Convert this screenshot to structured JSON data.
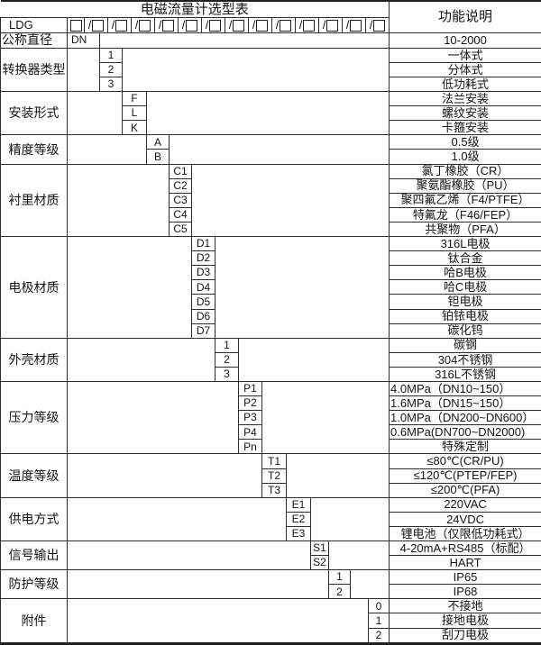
{
  "title": "电磁流量计选型表",
  "right_header": "功能说明",
  "model": {
    "prefix": "LDG",
    "first_box": "□",
    "slash_box_count": 13
  },
  "groups": [
    {
      "label": "公称直径",
      "label_align": "left",
      "code_col": 1,
      "code_align": "left",
      "codes": [
        "DN"
      ],
      "values": [
        "10-2000"
      ]
    },
    {
      "label": "转换器类型",
      "code_col": 2,
      "codes": [
        "1",
        "2",
        "3"
      ],
      "values": [
        "一体式",
        "分体式",
        "低功耗式"
      ]
    },
    {
      "label": "安装形式",
      "code_col": 3,
      "codes": [
        "F",
        "L",
        "K"
      ],
      "values": [
        "法兰安装",
        "螺纹安装",
        "卡箍安装"
      ]
    },
    {
      "label": "精度等级",
      "code_col": 4,
      "codes": [
        "A",
        "B"
      ],
      "values": [
        "0.5级",
        "1.0级"
      ]
    },
    {
      "label": "衬里材质",
      "code_col": 5,
      "codes": [
        "C1",
        "C2",
        "C3",
        "C4",
        "C5"
      ],
      "values": [
        "氯丁橡胶（CR）",
        "聚氨酯橡胶（PU）",
        "聚四氟乙烯（F4/PTFE）",
        "特氟龙（F46/FEP）",
        "共聚物（PFA）"
      ]
    },
    {
      "label": "电极材质",
      "code_col": 6,
      "codes": [
        "D1",
        "D2",
        "D3",
        "D4",
        "D5",
        "D6",
        "D7"
      ],
      "values": [
        "316L电极",
        "钛合金",
        "哈B电极",
        "哈C电极",
        "钽电极",
        "铂铱电极",
        "碳化钨"
      ]
    },
    {
      "label": "外壳材质",
      "code_col": 7,
      "codes": [
        "1",
        "2",
        "3"
      ],
      "values": [
        "碳钢",
        "304不锈钢",
        "316L不锈钢"
      ]
    },
    {
      "label": "压力等级",
      "code_col": 8,
      "codes": [
        "P1",
        "P2",
        "P3",
        "P4",
        "Pn"
      ],
      "values": [
        "4.0MPa（DN10~150）",
        "1.6MPa（DN15~150）",
        "1.0MPa（DN200~DN600）",
        "0.6MPa(DN700~DN2000)",
        "特殊定制"
      ],
      "value_align": [
        "left",
        "left",
        "left",
        "left",
        "center"
      ]
    },
    {
      "label": "温度等级",
      "code_col": 9,
      "codes": [
        "T1",
        "T2",
        "T3"
      ],
      "values": [
        "≤80℃(CR/PU)",
        "≤120℃(PTEP/FEP)",
        "≤200℃(PFA)"
      ]
    },
    {
      "label": "供电方式",
      "code_col": 10,
      "codes": [
        "E1",
        "E2",
        "E3"
      ],
      "values": [
        "220VAC",
        "24VDC",
        "锂电池（仅限低功耗式）"
      ]
    },
    {
      "label": "信号输出",
      "code_col": 11,
      "codes": [
        "S1",
        "S2"
      ],
      "values": [
        "4-20mA+RS485（标配）",
        "HART"
      ]
    },
    {
      "label": "防护等级",
      "code_col": 12,
      "codes": [
        "1",
        "2"
      ],
      "values": [
        "IP65",
        "IP68"
      ]
    },
    {
      "label": "附件",
      "code_col": 14,
      "codes": [
        "0",
        "1",
        "2"
      ],
      "values": [
        "不接地",
        "接地电极",
        "刮刀电极"
      ]
    }
  ],
  "colors": {
    "grid_line": "#2e2e2e",
    "outer_border": "#1f1f1f",
    "background": "#ffffff",
    "text": "#141414"
  }
}
